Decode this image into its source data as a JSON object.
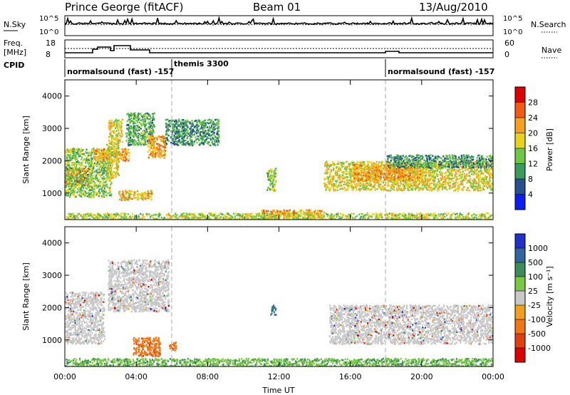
{
  "header": {
    "station": "Prince George (fitACF)",
    "beam": "Beam 01",
    "date": "13/Aug/2010"
  },
  "strip": {
    "nsky_label": "N.Sky",
    "nsky_ticks": [
      "10^5",
      "10^0"
    ],
    "nsearch_label": "N.Search",
    "nsearch_ticks": [
      "10^5",
      "10^0"
    ],
    "freq_label": "Freq.",
    "freq_unit": "[MHz]",
    "freq_ticks": [
      "18",
      "8"
    ],
    "nave_label": "Nave",
    "nave_ticks": [
      "60",
      "0"
    ],
    "cpid_label": "CPID",
    "cpid_segments": [
      {
        "label": "normalsound (fast)  -157"
      },
      {
        "label": "themis 3300"
      },
      {
        "label": "normalsound (fast)  -157"
      }
    ]
  },
  "axes": {
    "ylabel": "Slant Range [km]",
    "yticks": [
      "4000",
      "3000",
      "2000",
      "1000"
    ],
    "xlabel": "Time UT",
    "xticks": [
      "00:00",
      "04:00",
      "08:00",
      "12:00",
      "16:00",
      "20:00",
      "00:00"
    ]
  },
  "power_bar": {
    "label": "Power [dB]",
    "ticks": [
      "28",
      "24",
      "20",
      "16",
      "12",
      "8",
      "4"
    ],
    "colors": [
      "#dd0000",
      "#f05a14",
      "#f5a01e",
      "#e8d21e",
      "#6ec846",
      "#3c9a5a",
      "#28508c",
      "#0a1ef0"
    ]
  },
  "velocity_bar": {
    "label": "Velocity [m s⁻¹]",
    "ticks": [
      "1000",
      "500",
      "100",
      "25",
      "-25",
      "-100",
      "-500",
      "-1000"
    ],
    "colors": [
      "#2030c8",
      "#3264a0",
      "#3c8c5a",
      "#78c846",
      "#c8c8c8",
      "#f0a01e",
      "#f07814",
      "#e04010",
      "#dd0000"
    ]
  },
  "chart_data": {
    "type": "heatmap",
    "x_range": [
      "00:00",
      "24:00"
    ],
    "y_range": [
      180,
      4500
    ],
    "panels": [
      {
        "name": "Power",
        "unit": "dB",
        "regions": [
          {
            "t": [
              0.0,
              1.3
            ],
            "r": [
              1250,
              1800
            ],
            "level": 24
          },
          {
            "t": [
              0.0,
              2.6
            ],
            "r": [
              900,
              2400
            ],
            "level": 12
          },
          {
            "t": [
              1.6,
              3.6
            ],
            "r": [
              2000,
              2400
            ],
            "level": 20
          },
          {
            "t": [
              2.3,
              3.0
            ],
            "r": [
              1500,
              2600
            ],
            "level": 16
          },
          {
            "t": [
              2.4,
              3.2
            ],
            "r": [
              2600,
              3300
            ],
            "level": 16
          },
          {
            "t": [
              3.4,
              5.0
            ],
            "r": [
              2500,
              3500
            ],
            "level": 10
          },
          {
            "t": [
              4.6,
              5.6
            ],
            "r": [
              2100,
              2800
            ],
            "level": 20
          },
          {
            "t": [
              3.0,
              4.9
            ],
            "r": [
              800,
              1100
            ],
            "level": 18
          },
          {
            "t": [
              5.6,
              8.6
            ],
            "r": [
              2500,
              3300
            ],
            "level": 8
          },
          {
            "t": [
              11.0,
              14.5
            ],
            "r": [
              200,
              500
            ],
            "level": 20
          },
          {
            "t": [
              0.0,
              24.0
            ],
            "r": [
              180,
              400
            ],
            "level": 14
          },
          {
            "t": [
              14.5,
              24.0
            ],
            "r": [
              1100,
              2000
            ],
            "level": 16
          },
          {
            "t": [
              16.0,
              20.0
            ],
            "r": [
              1400,
              1900
            ],
            "level": 20
          },
          {
            "t": [
              18.0,
              24.0
            ],
            "r": [
              1800,
              2200
            ],
            "level": 8
          },
          {
            "t": [
              11.3,
              11.8
            ],
            "r": [
              1100,
              1800
            ],
            "level": 12
          }
        ]
      },
      {
        "name": "Velocity",
        "unit": "m s-1",
        "regions": [
          {
            "t": [
              0.0,
              2.2
            ],
            "r": [
              900,
              2500
            ],
            "level": 0
          },
          {
            "t": [
              2.4,
              5.8
            ],
            "r": [
              1900,
              3500
            ],
            "level": 0
          },
          {
            "t": [
              3.8,
              5.3
            ],
            "r": [
              500,
              1100
            ],
            "level": -500
          },
          {
            "t": [
              5.8,
              6.2
            ],
            "r": [
              700,
              950
            ],
            "level": -500
          },
          {
            "t": [
              14.8,
              24.0
            ],
            "r": [
              900,
              2100
            ],
            "level": 0
          },
          {
            "t": [
              0.0,
              24.0
            ],
            "r": [
              180,
              450
            ],
            "level": 100
          },
          {
            "t": [
              11.5,
              11.8
            ],
            "r": [
              1800,
              2100
            ],
            "level": 500
          }
        ]
      }
    ]
  }
}
